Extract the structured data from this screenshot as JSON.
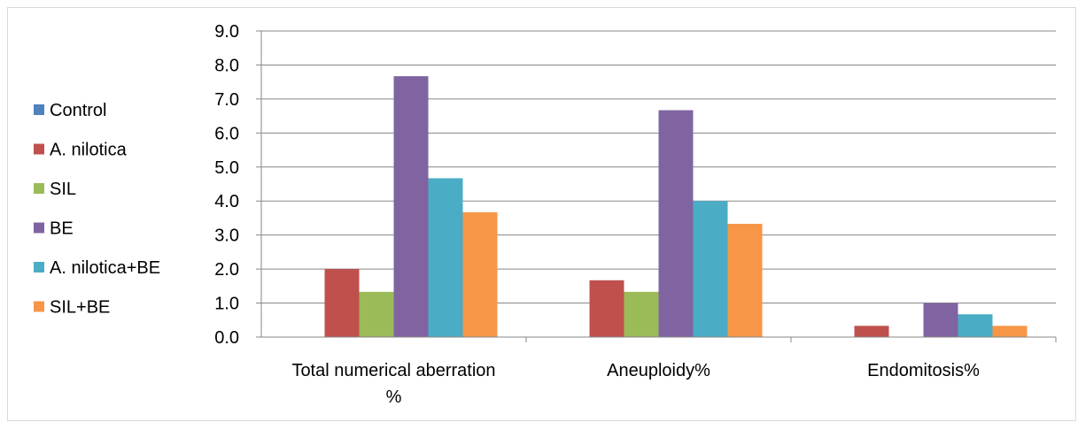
{
  "chart_data": {
    "type": "bar",
    "categories": [
      "Total numerical aberration %",
      "Aneuploidy%",
      "Endomitosis%"
    ],
    "category_lines": [
      [
        "Total numerical aberration",
        "%"
      ],
      [
        "Aneuploidy%"
      ],
      [
        "Endomitosis%"
      ]
    ],
    "series": [
      {
        "name": "Control",
        "color": "#4f81bd",
        "values": [
          0,
          0,
          0
        ]
      },
      {
        "name": "A. nilotica",
        "color": "#c0504d",
        "values": [
          2.0,
          1.67,
          0.33
        ]
      },
      {
        "name": "SIL",
        "color": "#9bbb59",
        "values": [
          1.33,
          1.33,
          0
        ]
      },
      {
        "name": "BE",
        "color": "#8064a2",
        "values": [
          7.67,
          6.67,
          1.0
        ]
      },
      {
        "name": "A. nilotica+BE",
        "color": "#4bacc6",
        "values": [
          4.67,
          4.0,
          0.67
        ]
      },
      {
        "name": "SIL+BE",
        "color": "#f79646",
        "values": [
          3.67,
          3.33,
          0.33
        ]
      }
    ],
    "ylim": [
      0,
      9
    ],
    "yticks": [
      "0.0",
      "1.0",
      "2.0",
      "3.0",
      "4.0",
      "5.0",
      "6.0",
      "7.0",
      "8.0",
      "9.0"
    ],
    "grid": true,
    "legend": "left",
    "title": "",
    "xlabel": "",
    "ylabel": ""
  }
}
